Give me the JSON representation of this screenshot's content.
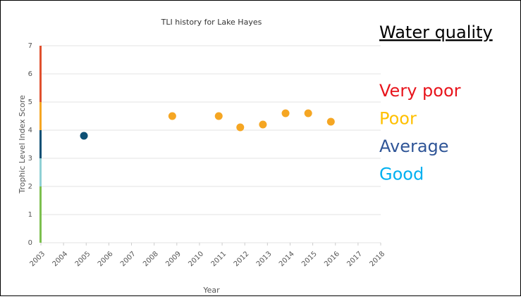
{
  "chart_data": {
    "type": "scatter",
    "title": "TLI history for Lake Hayes",
    "x_label": "Year",
    "y_label": "Trophic Level Index Score",
    "x": [
      2004.9,
      2008.8,
      2010.85,
      2011.8,
      2012.8,
      2013.8,
      2014.8,
      2015.8
    ],
    "values": [
      3.8,
      4.5,
      4.5,
      4.1,
      4.2,
      4.6,
      4.6,
      4.3
    ],
    "colors": [
      "#0d5075",
      "#f5a623",
      "#f5a623",
      "#f5a623",
      "#f5a623",
      "#f5a623",
      "#f5a623",
      "#f5a623"
    ],
    "xlim": [
      2003,
      2018
    ],
    "xticks": [
      2003,
      2004,
      2005,
      2006,
      2007,
      2008,
      2009,
      2010,
      2011,
      2012,
      2013,
      2014,
      2015,
      2016,
      2017,
      2018
    ],
    "ylim": [
      0,
      7
    ],
    "yticks": [
      0,
      1,
      2,
      3,
      4,
      5,
      6,
      7
    ],
    "grid": true,
    "bands": [
      {
        "from": 0,
        "to": 2,
        "color": "#7cbf4f"
      },
      {
        "from": 2,
        "to": 3,
        "color": "#8fd0d4"
      },
      {
        "from": 3,
        "to": 4,
        "color": "#0d5075"
      },
      {
        "from": 4,
        "to": 5,
        "color": "#f5a623"
      },
      {
        "from": 5,
        "to": 7,
        "color": "#e0502e"
      }
    ],
    "legend_title": "Water quality",
    "legend": [
      {
        "label": "Very poor",
        "color": "#e8141c"
      },
      {
        "label": "Poor",
        "color": "#ffc000"
      },
      {
        "label": "Average",
        "color": "#2f5597"
      },
      {
        "label": "Good",
        "color": "#00b0f0"
      }
    ]
  }
}
